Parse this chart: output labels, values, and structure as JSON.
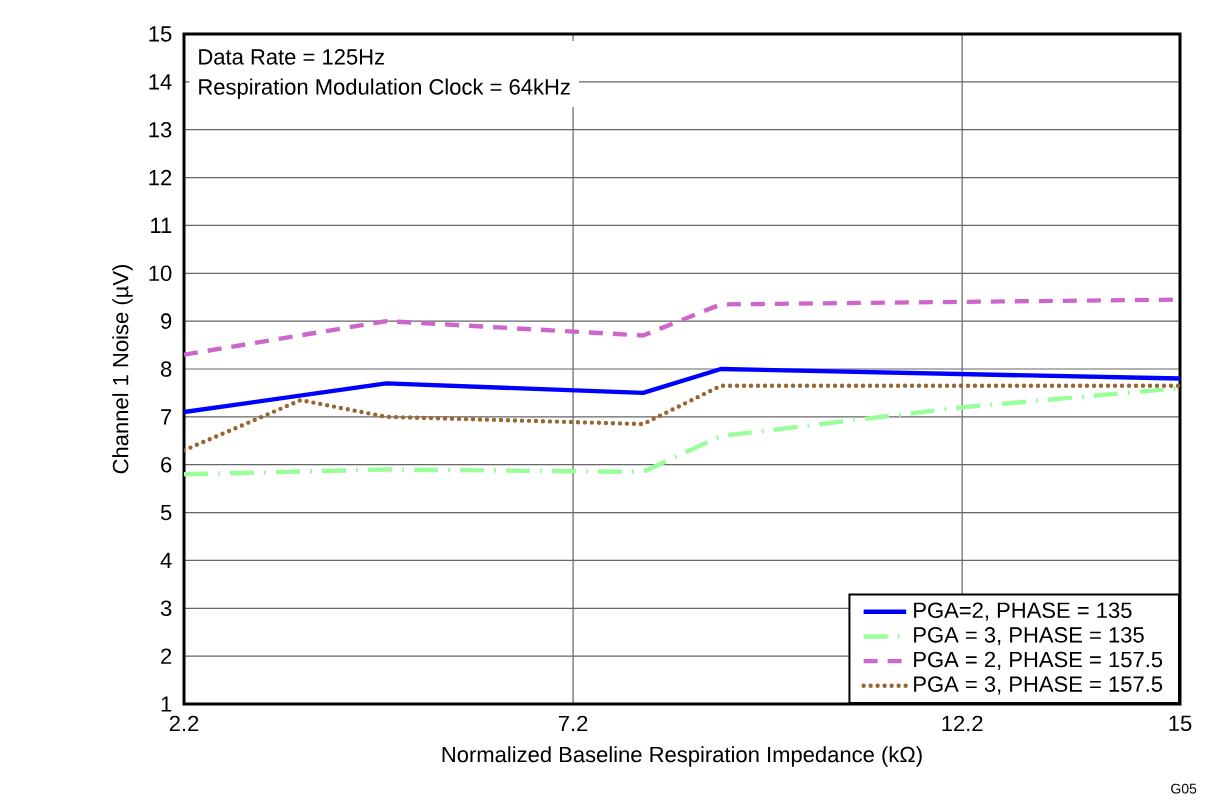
{
  "chart_data": {
    "type": "line",
    "xlabel": "Normalized Baseline Respiration Impedance (kΩ)",
    "ylabel": "Channel 1 Noise (µV)",
    "annotations": [
      "Data Rate = 125Hz",
      "Respiration Modulation Clock = 64kHz",
      "G05"
    ],
    "xlim": [
      2.2,
      15
    ],
    "xticks": [
      2.2,
      7.2,
      12.2,
      15
    ],
    "ylim": [
      1,
      15
    ],
    "yticks": [
      1,
      2,
      3,
      4,
      5,
      6,
      7,
      8,
      9,
      10,
      11,
      12,
      13,
      14,
      15
    ],
    "grid": true,
    "legend": "bottom right",
    "series": [
      {
        "name": "PGA=2, PHASE = 135",
        "color": "#0000ff",
        "line_style": "solid",
        "x": [
          2.2,
          4.8,
          8.1,
          9.1,
          15
        ],
        "values": [
          7.1,
          7.7,
          7.5,
          8.0,
          7.8
        ]
      },
      {
        "name": "PGA = 3, PHASE = 135",
        "color": "#99ff99",
        "line_style": "dashdot",
        "x": [
          2.2,
          4.8,
          8.1,
          9.1,
          12.2,
          15
        ],
        "values": [
          5.8,
          5.9,
          5.85,
          6.6,
          7.2,
          7.6
        ]
      },
      {
        "name": "PGA = 2, PHASE = 157.5",
        "color": "#cc66cc",
        "line_style": "dashed",
        "x": [
          2.2,
          4.8,
          8.1,
          9.1,
          15
        ],
        "values": [
          8.3,
          9.0,
          8.7,
          9.35,
          9.45
        ]
      },
      {
        "name": "PGA = 3, PHASE = 157.5",
        "color": "#996633",
        "line_style": "dotted",
        "x": [
          2.2,
          3.7,
          4.8,
          8.1,
          9.1,
          15
        ],
        "values": [
          6.3,
          7.35,
          7.0,
          6.85,
          7.65,
          7.65
        ]
      }
    ]
  }
}
